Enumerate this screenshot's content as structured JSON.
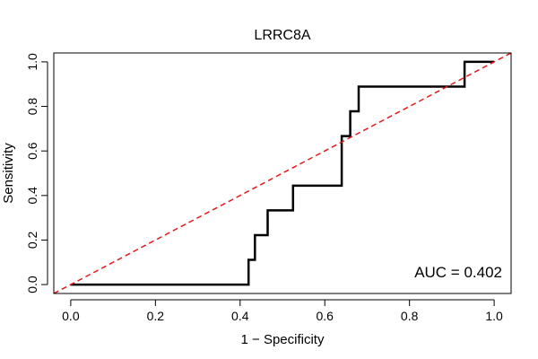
{
  "chart_data": {
    "type": "line",
    "title": "LRRC8A",
    "xlabel": "1 − Specificity",
    "ylabel": "Sensitivity",
    "xlim": [
      -0.04,
      1.04
    ],
    "ylim": [
      -0.04,
      1.04
    ],
    "x_ticks": [
      0.0,
      0.2,
      0.4,
      0.6,
      0.8,
      1.0
    ],
    "y_ticks": [
      0.0,
      0.2,
      0.4,
      0.6,
      0.8,
      1.0
    ],
    "x_tick_labels": [
      "0.0",
      "0.2",
      "0.4",
      "0.6",
      "0.8",
      "1.0"
    ],
    "y_tick_labels": [
      "0.0",
      "0.2",
      "0.4",
      "0.6",
      "0.8",
      "1.0"
    ],
    "grid": false,
    "annotation": "AUC = 0.402",
    "series": [
      {
        "kind": "roc-step",
        "color": "#000000",
        "x": [
          0.0,
          0.42,
          0.42,
          0.435,
          0.435,
          0.465,
          0.465,
          0.525,
          0.525,
          0.64,
          0.64,
          0.645,
          0.645,
          0.66,
          0.66,
          0.68,
          0.68,
          0.93,
          0.93,
          1.0
        ],
        "y": [
          0.0,
          0.0,
          0.111,
          0.111,
          0.222,
          0.222,
          0.333,
          0.333,
          0.444,
          0.444,
          0.667,
          0.667,
          0.667,
          0.667,
          0.778,
          0.778,
          0.889,
          0.889,
          1.0,
          1.0
        ]
      },
      {
        "kind": "reference-diagonal",
        "color": "#e31a1c",
        "dashed": true,
        "x": [
          -0.04,
          1.04
        ],
        "y": [
          -0.04,
          1.04
        ]
      }
    ]
  }
}
